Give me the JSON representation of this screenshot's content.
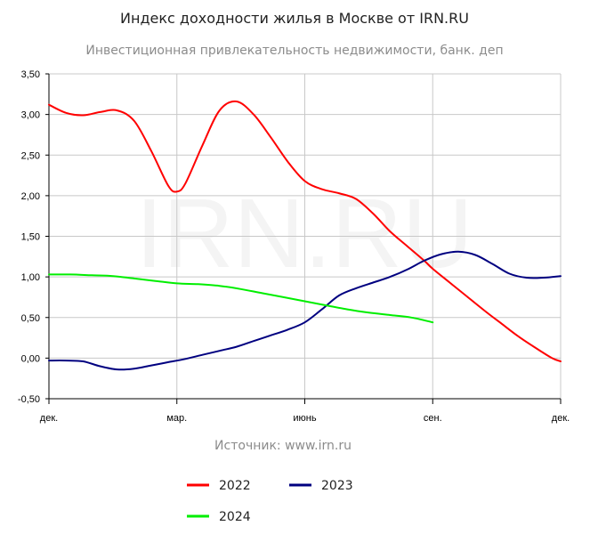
{
  "chart_data": {
    "type": "line",
    "title": "Индекс доходности жилья в Москве от IRN.RU",
    "subtitle": "Инвестиционная привлекательность недвижимости, банк. деп",
    "watermark": "IRN.RU",
    "source": "Источник: www.irn.ru",
    "xlabel": "",
    "ylabel": "",
    "ylim": [
      -0.5,
      3.5
    ],
    "yticks": [
      -0.5,
      0,
      0.5,
      1,
      1.5,
      2,
      2.5,
      3,
      3.5
    ],
    "ytick_labels": [
      "-0,50",
      "0,00",
      "0,50",
      "1,00",
      "1,50",
      "2,00",
      "2,50",
      "3,00",
      "3,50"
    ],
    "xlim": [
      0,
      12
    ],
    "xticks": [
      0,
      3,
      6,
      9,
      12
    ],
    "xtick_labels": [
      "дек.",
      "мар.",
      "июнь",
      "сен.",
      "дек."
    ],
    "grid": true,
    "legend_position": "bottom",
    "series": [
      {
        "name": "2022",
        "color": "#ff0000",
        "x": [
          0,
          0.4,
          0.8,
          1.2,
          1.6,
          2.0,
          2.4,
          2.8,
          3.0,
          3.2,
          3.6,
          4.0,
          4.4,
          4.8,
          5.2,
          5.6,
          6.0,
          6.4,
          6.8,
          7.2,
          7.6,
          8.0,
          8.4,
          8.8,
          9.0,
          9.4,
          9.8,
          10.2,
          10.6,
          11.0,
          11.4,
          11.8,
          12.0
        ],
        "y": [
          3.12,
          3.02,
          2.99,
          3.03,
          3.05,
          2.92,
          2.55,
          2.12,
          2.05,
          2.15,
          2.62,
          3.05,
          3.16,
          3.0,
          2.72,
          2.42,
          2.18,
          2.08,
          2.03,
          1.96,
          1.78,
          1.56,
          1.38,
          1.2,
          1.1,
          0.93,
          0.76,
          0.59,
          0.43,
          0.27,
          0.13,
          0.0,
          -0.04
        ]
      },
      {
        "name": "2023",
        "color": "#000080",
        "x": [
          0,
          0.4,
          0.8,
          1.2,
          1.6,
          2.0,
          2.4,
          2.8,
          3.2,
          3.6,
          4.0,
          4.4,
          4.8,
          5.2,
          5.6,
          6.0,
          6.4,
          6.8,
          7.2,
          7.6,
          8.0,
          8.4,
          8.8,
          9.2,
          9.6,
          10.0,
          10.4,
          10.8,
          11.2,
          11.6,
          12.0
        ],
        "y": [
          -0.03,
          -0.03,
          -0.04,
          -0.1,
          -0.14,
          -0.13,
          -0.09,
          -0.05,
          -0.01,
          0.04,
          0.09,
          0.14,
          0.21,
          0.28,
          0.35,
          0.44,
          0.6,
          0.77,
          0.86,
          0.93,
          1.0,
          1.09,
          1.2,
          1.28,
          1.31,
          1.27,
          1.16,
          1.04,
          0.99,
          0.99,
          1.01
        ]
      },
      {
        "name": "2024",
        "color": "#00ee00",
        "x": [
          0,
          0.5,
          1.0,
          1.5,
          2.0,
          2.5,
          3.0,
          3.5,
          4.0,
          4.5,
          5.0,
          5.5,
          6.0,
          6.5,
          7.0,
          7.5,
          8.0,
          8.5,
          9.0
        ],
        "y": [
          1.03,
          1.03,
          1.02,
          1.01,
          0.98,
          0.95,
          0.92,
          0.91,
          0.89,
          0.85,
          0.8,
          0.75,
          0.7,
          0.65,
          0.6,
          0.56,
          0.53,
          0.5,
          0.44
        ]
      }
    ]
  }
}
